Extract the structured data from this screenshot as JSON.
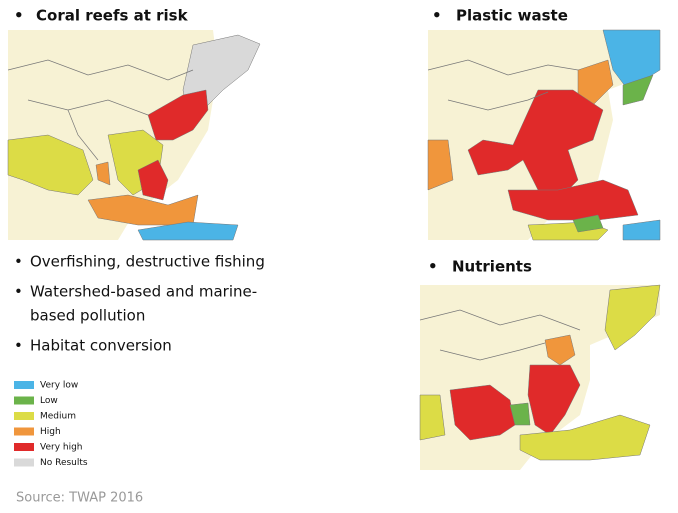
{
  "maps": [
    {
      "title": "Coral reefs at risk"
    },
    {
      "title": "Plastic waste"
    },
    {
      "title": "Nutrients"
    }
  ],
  "bullets": [
    {
      "lines": [
        "Overfishing, destructive fishing"
      ]
    },
    {
      "lines": [
        "Watershed-based and marine-",
        "based pollution"
      ]
    },
    {
      "lines": [
        "Habitat conversion"
      ]
    }
  ],
  "legend": {
    "items": [
      {
        "label": "Very low",
        "color": "#4bb4e6"
      },
      {
        "label": "Low",
        "color": "#6bb34a"
      },
      {
        "label": "Medium",
        "color": "#dcdc46"
      },
      {
        "label": "High",
        "color": "#f0963c"
      },
      {
        "label": "Very high",
        "color": "#e02a2a"
      },
      {
        "label": "No Results",
        "color": "#d9d9d9"
      }
    ]
  },
  "source": "Source: TWAP 2016"
}
